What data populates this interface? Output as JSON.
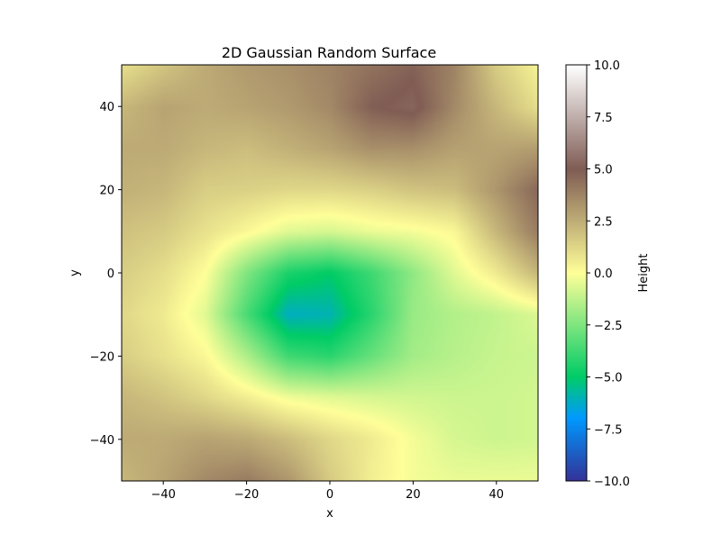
{
  "chart_data": {
    "type": "heatmap",
    "title": "2D Gaussian Random Surface",
    "xlabel": "x",
    "ylabel": "y",
    "xlim": [
      -50,
      50
    ],
    "ylim": [
      -50,
      50
    ],
    "x_ticks": [
      -40,
      -20,
      0,
      20,
      40
    ],
    "y_ticks": [
      -40,
      -20,
      0,
      20,
      40
    ],
    "grid": false,
    "colormap": "terrain",
    "colorbar": {
      "label": "Height",
      "range": [
        -10.0,
        10.0
      ],
      "ticks": [
        10.0,
        7.5,
        5.0,
        2.5,
        0.0,
        -2.5,
        -5.0,
        -7.5,
        -10.0
      ],
      "tick_labels": [
        "10.0",
        "7.5",
        "5.0",
        "2.5",
        "0.0",
        "−2.5",
        "−5.0",
        "−7.5",
        "−10.0"
      ]
    },
    "x": [
      -50,
      -40,
      -30,
      -20,
      -10,
      0,
      10,
      20,
      30,
      40,
      50
    ],
    "y": [
      50,
      40,
      30,
      20,
      10,
      0,
      -10,
      -20,
      -30,
      -40,
      -50
    ],
    "z": [
      [
        1.0,
        1.8,
        2.6,
        3.1,
        3.4,
        3.8,
        4.3,
        4.8,
        3.8,
        1.6,
        0.4
      ],
      [
        2.2,
        2.8,
        2.6,
        2.8,
        3.1,
        3.6,
        4.9,
        5.3,
        3.6,
        2.2,
        1.0
      ],
      [
        2.6,
        2.6,
        2.2,
        2.0,
        2.4,
        2.8,
        3.4,
        3.4,
        2.9,
        2.8,
        3.0
      ],
      [
        2.4,
        2.2,
        1.5,
        1.4,
        1.2,
        1.2,
        1.4,
        1.8,
        2.0,
        3.2,
        4.6
      ],
      [
        1.9,
        1.6,
        0.9,
        0.2,
        -0.6,
        -0.8,
        -0.4,
        -0.2,
        0.2,
        2.2,
        4.0
      ],
      [
        1.5,
        1.0,
        0.0,
        -2.5,
        -4.5,
        -5.0,
        -3.8,
        -2.2,
        -0.6,
        0.6,
        2.2
      ],
      [
        1.2,
        0.6,
        -0.6,
        -3.6,
        -6.2,
        -6.0,
        -4.2,
        -2.0,
        -1.5,
        -1.2,
        -0.7
      ],
      [
        1.5,
        0.9,
        0.2,
        -1.6,
        -3.8,
        -4.2,
        -3.0,
        -1.8,
        -1.4,
        -1.1,
        -1.0
      ],
      [
        2.2,
        1.8,
        1.2,
        0.5,
        -0.3,
        -0.6,
        -0.8,
        -0.9,
        -1.0,
        -1.0,
        -0.9
      ],
      [
        2.6,
        2.6,
        2.8,
        2.6,
        2.0,
        1.2,
        0.6,
        -0.2,
        -0.8,
        -1.0,
        -0.9
      ],
      [
        2.2,
        2.8,
        3.6,
        4.0,
        3.2,
        1.6,
        0.5,
        -0.2,
        -0.4,
        -0.4,
        -0.4
      ]
    ]
  }
}
